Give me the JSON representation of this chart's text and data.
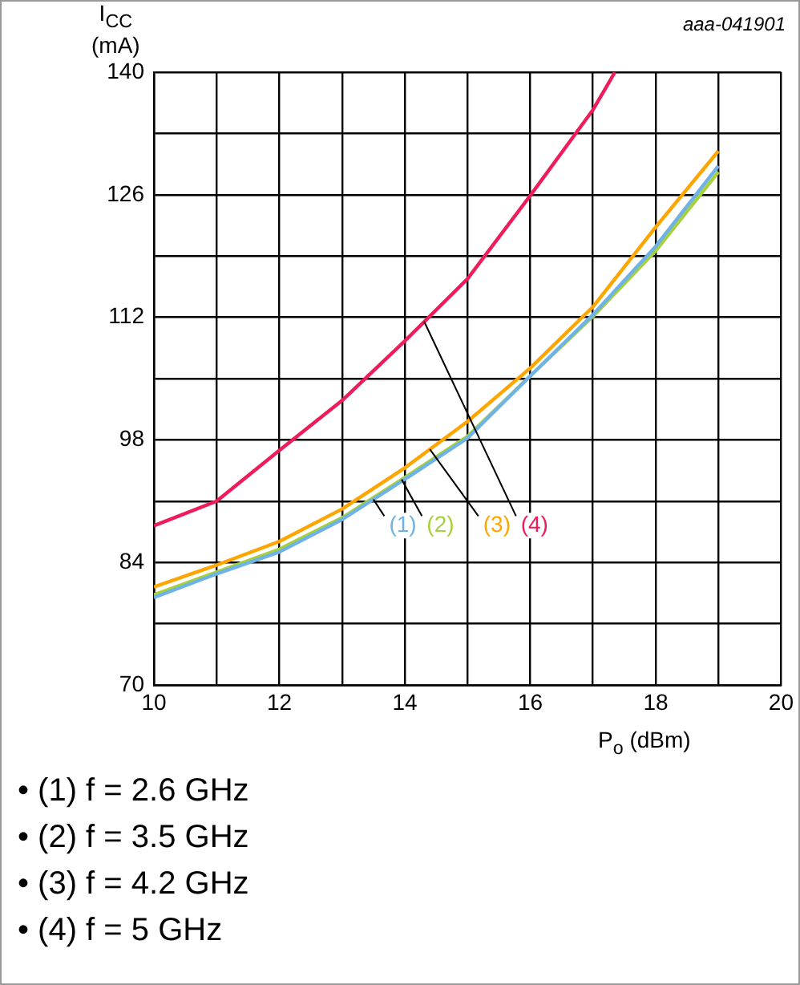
{
  "chart_data": {
    "type": "line",
    "xlabel": "P$_{o}$ (dBm)",
    "ylabel": "I$_{CC}$ (mA)",
    "annotations": [
      "aaa-041901",
      "• (1) f = 2.6 GHz",
      "• (2) f = 3.5 GHz",
      "• (3) f = 4.2 GHz",
      "• (4) f = 5 GHz"
    ],
    "xlim": [
      10,
      20
    ],
    "ylim": [
      70,
      140
    ],
    "xticks": [
      10,
      {
        "value": 11,
        "label": null
      },
      12,
      {
        "value": 13,
        "label": null
      },
      14,
      {
        "value": 15,
        "label": null
      },
      16,
      {
        "value": 17,
        "label": null
      },
      18,
      {
        "value": 19,
        "label": null
      },
      20
    ],
    "yticks": [
      70,
      {
        "value": 77,
        "label": null
      },
      84,
      {
        "value": 91,
        "label": null
      },
      98,
      {
        "value": 105,
        "label": null
      },
      112,
      {
        "value": 119,
        "label": null
      },
      126,
      {
        "value": 133,
        "label": null
      },
      140
    ],
    "grid": true,
    "legend": false,
    "marker": "none",
    "series": [
      {
        "name": "(1)",
        "color": "#6fb3e6",
        "x": [
          10,
          11,
          12,
          13,
          14,
          15,
          16,
          17,
          18,
          19
        ],
        "values": [
          80.0,
          82.7,
          85.2,
          88.9,
          93.5,
          98.2,
          105.3,
          112.3,
          120.1,
          129.3
        ]
      },
      {
        "name": "(2)",
        "color": "#a6d13a",
        "x": [
          10,
          11,
          12,
          13,
          14,
          15,
          16,
          17,
          18,
          19
        ],
        "values": [
          80.3,
          82.9,
          85.5,
          89.1,
          93.7,
          98.4,
          105.3,
          112.1,
          119.6,
          128.6
        ]
      },
      {
        "name": "(3)",
        "color": "#ffa500",
        "x": [
          10,
          11,
          12,
          13,
          14,
          15,
          16,
          17,
          18,
          19
        ],
        "values": [
          81.2,
          83.7,
          86.4,
          90.1,
          94.8,
          100.1,
          106.2,
          113.2,
          122.3,
          131.0
        ]
      },
      {
        "name": "(4)",
        "color": "#ee1c5a",
        "x": [
          10,
          11,
          12,
          13,
          14,
          15,
          16,
          17,
          17.35
        ],
        "values": [
          88.2,
          91.0,
          96.8,
          102.5,
          109.3,
          116.4,
          125.9,
          135.7,
          140
        ]
      }
    ]
  }
}
